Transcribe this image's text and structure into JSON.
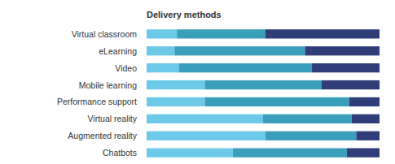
{
  "chart_data": {
    "type": "bar",
    "title": "Delivery methods",
    "orientation": "horizontal",
    "stacked": true,
    "tick_labels": false,
    "categories": [
      "Virtual classroom",
      "eLearning",
      "Video",
      "Mobile learning",
      "Performance support",
      "Virtual reality",
      "Augmented reality",
      "Chatbots"
    ],
    "xlim": [
      0,
      100
    ],
    "series": [
      {
        "color": "#6ccae8",
        "values": [
          13,
          12,
          14,
          25,
          25,
          50,
          51,
          37
        ]
      },
      {
        "color": "#3a9fba",
        "values": [
          38,
          56,
          57,
          50,
          62,
          38,
          39,
          49
        ]
      },
      {
        "color": "#2f3e78",
        "values": [
          49,
          32,
          29,
          25,
          13,
          12,
          10,
          14
        ]
      }
    ]
  }
}
